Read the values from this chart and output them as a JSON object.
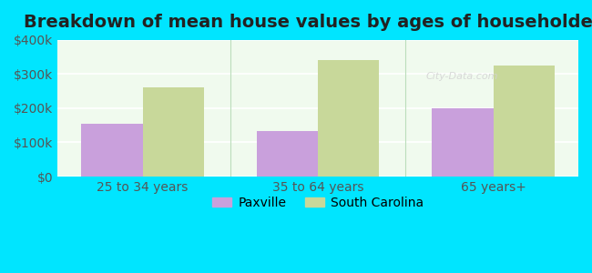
{
  "title": "Breakdown of mean house values by ages of householders",
  "categories": [
    "25 to 34 years",
    "35 to 64 years",
    "65 years+"
  ],
  "paxville": [
    155000,
    132000,
    200000
  ],
  "south_carolina": [
    262000,
    340000,
    325000
  ],
  "paxville_color": "#c9a0dc",
  "sc_color": "#c8d89a",
  "background_outer": "#00e5ff",
  "background_inner": "#f0faee",
  "ylim": [
    0,
    400000
  ],
  "yticks": [
    0,
    100000,
    200000,
    300000,
    400000
  ],
  "ytick_labels": [
    "$0",
    "$100k",
    "$200k",
    "$300k",
    "$400k"
  ],
  "legend_labels": [
    "Paxville",
    "South Carolina"
  ],
  "bar_width": 0.35,
  "title_fontsize": 14,
  "tick_fontsize": 10,
  "legend_fontsize": 10
}
